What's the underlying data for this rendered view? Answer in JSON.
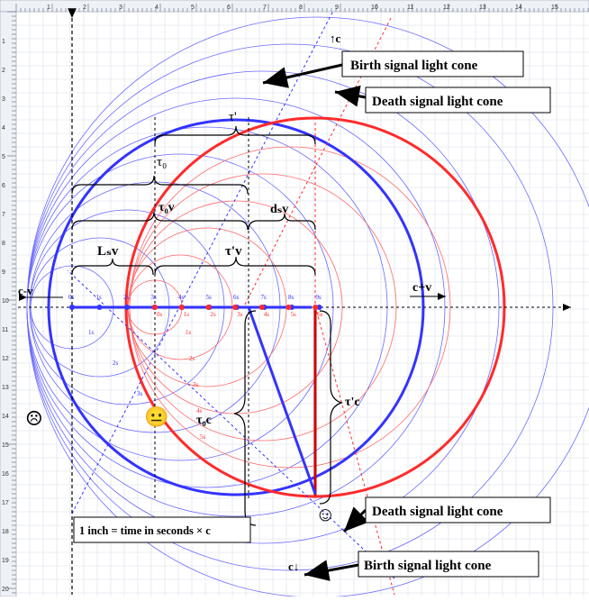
{
  "ruler": {
    "top_numbers": [
      "1",
      "2",
      "3",
      "4",
      "5",
      "6",
      "7",
      "8",
      "9",
      "10",
      "11",
      "12",
      "13",
      "14",
      "15"
    ],
    "left_numbers": [
      "1",
      "2",
      "3",
      "4",
      "5",
      "6",
      "7",
      "8",
      "9",
      "10",
      "11",
      "12",
      "13",
      "14",
      "15",
      "16",
      "17",
      "18",
      "19",
      "20"
    ]
  },
  "labels": {
    "c_up": "↑c",
    "c_down": "c↓",
    "birth_top": "Birth signal light cone",
    "death_top": "Death signal light cone",
    "death_bottom": "Death signal light cone",
    "birth_bottom": "Birth signal light cone",
    "scale_note": "1 inch  = time in seconds × c",
    "c_minus_v": "c-v",
    "c_plus_v": "c+v",
    "tau_prime": "τ'",
    "tau0": "τ₀",
    "tau0v": "τ₀v",
    "dsv": "dₛv",
    "Lsv": "Lₛv",
    "tau_prime_v": "τ'v",
    "tau0c": "τ₀c",
    "tau_prime_c": "τ'c"
  },
  "blue_ticks": [
    "0s",
    "1s",
    "2s",
    "3s",
    "4s",
    "5s",
    "6s",
    "7s",
    "8s",
    "9s"
  ],
  "red_ticks": [
    "0s",
    "1s",
    "2s",
    "3s",
    "4s",
    "5s",
    "6s"
  ],
  "blue_diag_ticks": [
    "1s",
    "2s",
    "3s"
  ],
  "red_diag_ticks": [
    "1s",
    "2s",
    "3s",
    "4s",
    "5s"
  ],
  "faces": {
    "sad": "☹",
    "neutral": "😐",
    "happy": "☺"
  },
  "colors": {
    "blue": "#3333ff",
    "light_blue": "#6a6aff",
    "red": "#ff2a2a",
    "light_red": "#ff6a6a",
    "grid": "#d7dde8"
  }
}
